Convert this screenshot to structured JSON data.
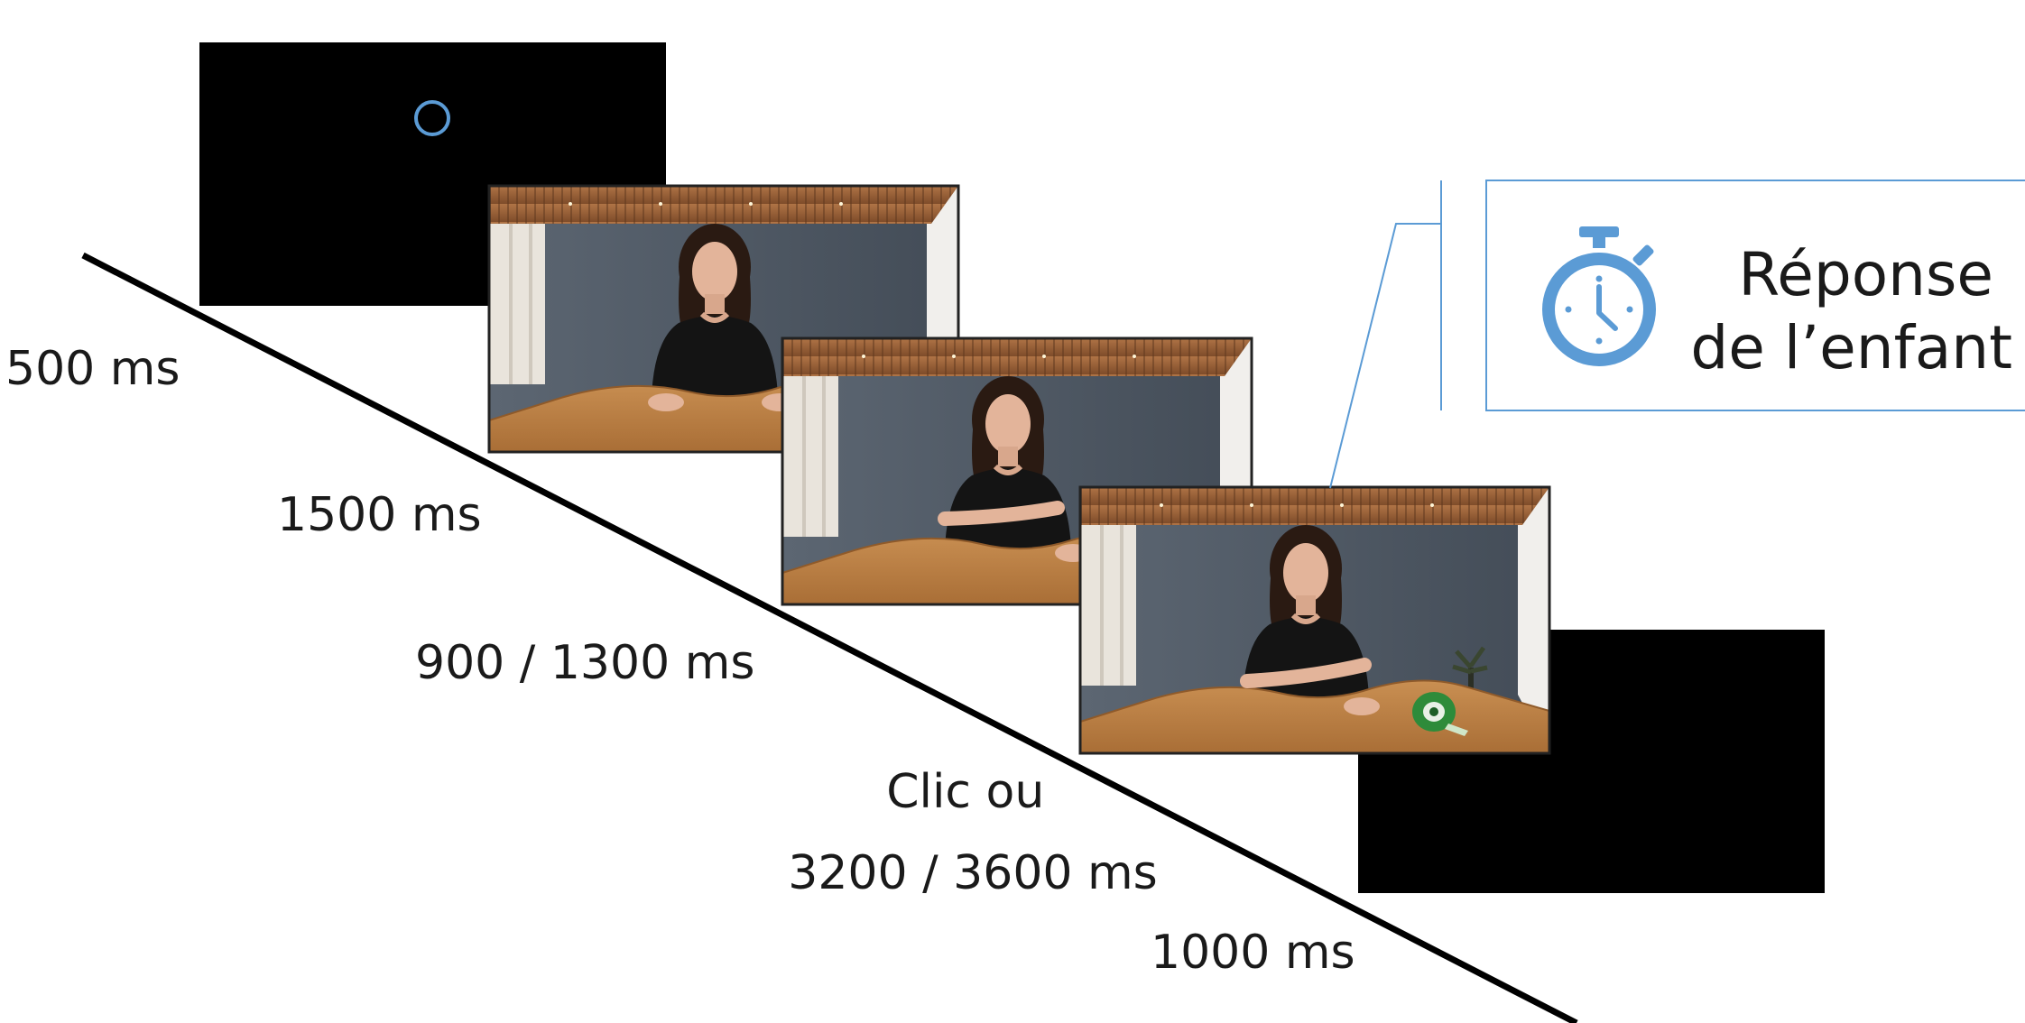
{
  "timeline": {
    "durations": [
      {
        "id": "fixation",
        "lines": [
          "500 ms"
        ]
      },
      {
        "id": "video-1",
        "lines": [
          "1500 ms"
        ]
      },
      {
        "id": "video-2",
        "lines": [
          "900 / 1300 ms"
        ]
      },
      {
        "id": "video-3",
        "lines": [
          "Clic ou",
          "3200 / 3600 ms"
        ]
      },
      {
        "id": "blank",
        "lines": [
          "1000 ms"
        ]
      }
    ]
  },
  "callout": {
    "lines": [
      "Réponse",
      "de l’enfant"
    ],
    "icon": "stopwatch-icon"
  },
  "colors": {
    "accent_blue": "#5b9bd5",
    "screen_black": "#000000",
    "table_wood": "#c08448",
    "wall_gray": "#4f5965"
  }
}
